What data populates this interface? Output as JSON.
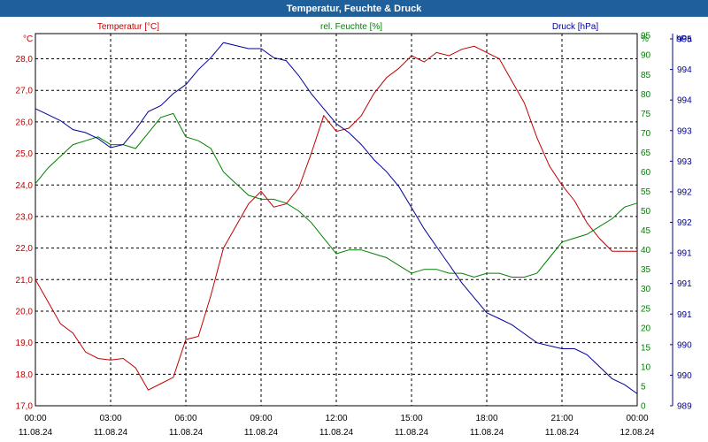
{
  "window": {
    "title": "Temperatur, Feuchte & Druck"
  },
  "chart_data": {
    "type": "line",
    "title": "Temperatur, Feuchte & Druck",
    "x_ticks": [
      {
        "time": "00:00",
        "date": "11.08.24"
      },
      {
        "time": "03:00",
        "date": "11.08.24"
      },
      {
        "time": "06:00",
        "date": "11.08.24"
      },
      {
        "time": "09:00",
        "date": "11.08.24"
      },
      {
        "time": "12:00",
        "date": "11.08.24"
      },
      {
        "time": "15:00",
        "date": "11.08.24"
      },
      {
        "time": "18:00",
        "date": "11.08.24"
      },
      {
        "time": "21:00",
        "date": "11.08.24"
      },
      {
        "time": "00:00",
        "date": "12.08.24"
      }
    ],
    "grid": true,
    "axes": {
      "temperature": {
        "label": "Temperatur [°C]",
        "unit": "°C",
        "color": "#c00000",
        "ylim": [
          17.0,
          28.8
        ],
        "ticks": [
          "17,0",
          "18,0",
          "19,0",
          "20,0",
          "21,0",
          "22,0",
          "23,0",
          "24,0",
          "25,0",
          "26,0",
          "27,0",
          "28,0"
        ]
      },
      "humidity": {
        "label": "rel. Feuchte [%]",
        "unit": "%",
        "color": "#008000",
        "ylim": [
          0,
          95.5
        ],
        "ticks": [
          "0",
          "5",
          "10",
          "15",
          "20",
          "25",
          "30",
          "35",
          "40",
          "45",
          "50",
          "55",
          "60",
          "65",
          "70",
          "75",
          "80",
          "85",
          "90",
          "95"
        ]
      },
      "pressure": {
        "label": "Druck [hPa]",
        "unit": "hPa",
        "color": "#000099",
        "ylim": [
          989.0,
          995.2
        ],
        "ticks": [
          "989",
          "990",
          "990",
          "991",
          "991",
          "991",
          "992",
          "992",
          "993",
          "993",
          "994",
          "994",
          "995"
        ]
      }
    },
    "series": [
      {
        "name": "Temperatur [°C]",
        "axis": "temperature",
        "color": "#c00000",
        "x_hours": [
          0,
          0.5,
          1,
          1.5,
          2,
          2.5,
          3,
          3.5,
          4,
          4.5,
          5,
          5.5,
          6,
          6.5,
          7,
          7.5,
          8,
          8.5,
          9,
          9.5,
          10,
          10.5,
          11,
          11.5,
          12,
          12.5,
          13,
          13.5,
          14,
          14.5,
          15,
          15.5,
          16,
          16.5,
          17,
          17.5,
          18,
          18.5,
          19,
          19.5,
          20,
          20.5,
          21,
          21.5,
          22,
          22.5,
          23,
          23.5,
          24
        ],
        "y": [
          21.0,
          20.3,
          19.6,
          19.3,
          18.7,
          18.5,
          18.45,
          18.5,
          18.2,
          17.5,
          17.7,
          17.9,
          19.1,
          19.2,
          20.5,
          22.0,
          22.7,
          23.4,
          23.8,
          23.3,
          23.4,
          23.9,
          25.0,
          26.2,
          25.7,
          25.8,
          26.2,
          26.9,
          27.4,
          27.7,
          28.1,
          27.9,
          28.2,
          28.1,
          28.3,
          28.4,
          28.2,
          28.0,
          27.3,
          26.6,
          25.5,
          24.6,
          24.0,
          23.5,
          22.8,
          22.3,
          21.9,
          21.9,
          21.9
        ]
      },
      {
        "name": "rel. Feuchte [%]",
        "axis": "humidity",
        "color": "#008000",
        "x_hours": [
          0,
          0.5,
          1,
          1.5,
          2,
          2.5,
          3,
          3.5,
          4,
          4.5,
          5,
          5.5,
          6,
          6.5,
          7,
          7.5,
          8,
          8.5,
          9,
          9.5,
          10,
          10.5,
          11,
          11.5,
          12,
          12.5,
          13,
          13.5,
          14,
          14.5,
          15,
          15.5,
          16,
          16.5,
          17,
          17.5,
          18,
          18.5,
          19,
          19.5,
          20,
          20.5,
          21,
          21.5,
          22,
          22.5,
          23,
          23.5,
          24
        ],
        "y": [
          57,
          61,
          64,
          67,
          68,
          69,
          67,
          67,
          66,
          70,
          74,
          75,
          69,
          68,
          66,
          60,
          57,
          54,
          53,
          53,
          52,
          50,
          47,
          43,
          39,
          40,
          40,
          39,
          38,
          36,
          34,
          35,
          35,
          34,
          34,
          33,
          34,
          34,
          33,
          33,
          34,
          38,
          42,
          43,
          44,
          46,
          48,
          51,
          52
        ]
      },
      {
        "name": "Druck [hPa]",
        "axis": "pressure",
        "color": "#000099",
        "x_hours": [
          0,
          0.5,
          1,
          1.5,
          2,
          2.5,
          3,
          3.5,
          4,
          4.5,
          5,
          5.5,
          6,
          6.5,
          7,
          7.5,
          8,
          8.5,
          9,
          9.5,
          10,
          10.5,
          11,
          11.5,
          12,
          12.5,
          13,
          13.5,
          14,
          14.5,
          15,
          15.5,
          16,
          16.5,
          17,
          17.5,
          18,
          18.5,
          19,
          19.5,
          20,
          20.5,
          21,
          21.5,
          22,
          22.5,
          23,
          23.5,
          24
        ],
        "y": [
          993.95,
          993.85,
          993.75,
          993.6,
          993.55,
          993.45,
          993.3,
          993.35,
          993.6,
          993.9,
          994.0,
          994.2,
          994.35,
          994.6,
          994.8,
          995.05,
          995.0,
          994.95,
          994.95,
          994.8,
          994.75,
          994.5,
          994.2,
          993.95,
          993.7,
          993.55,
          993.35,
          993.1,
          992.9,
          992.65,
          992.3,
          991.95,
          991.65,
          991.35,
          991.05,
          990.8,
          990.55,
          990.45,
          990.35,
          990.2,
          990.05,
          990.0,
          989.95,
          989.95,
          989.85,
          989.65,
          989.45,
          989.35,
          989.2
        ]
      }
    ]
  }
}
